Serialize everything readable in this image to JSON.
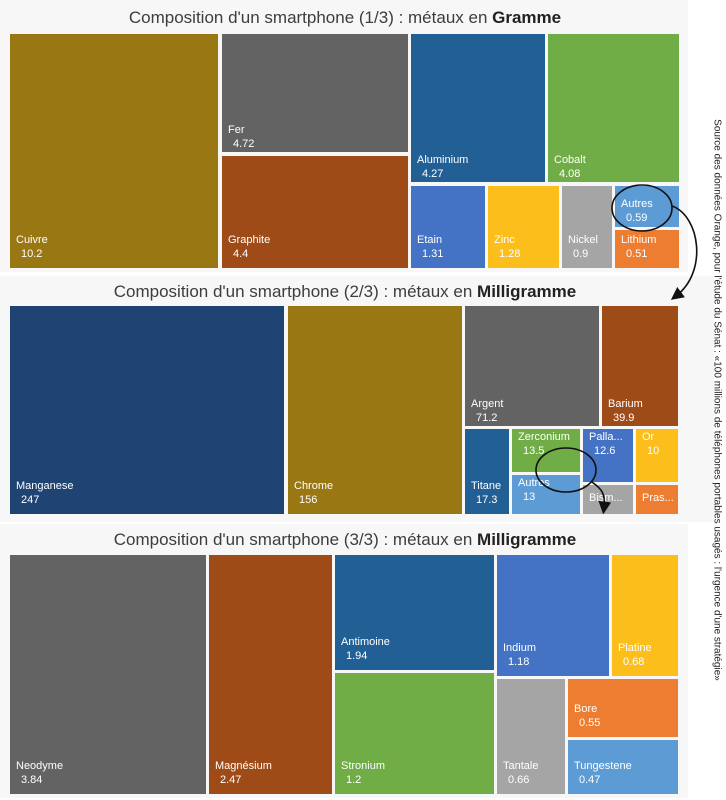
{
  "source_note": "Source des données Orange, pour l'étude du Sénat : «100 millions de téléphones portables usagés : l'urgence d'une stratégie»",
  "colors": {
    "olive": "#997713",
    "gray": "#636363",
    "rust": "#9f4b18",
    "navy": "#1f4372",
    "blue": "#225f94",
    "green": "#70ad47",
    "lblue": "#5d9bd5",
    "steel": "#4472c4",
    "yellow": "#fbbe1a",
    "lgray": "#a5a5a5",
    "orange": "#ed7d31"
  },
  "chart_data": [
    {
      "type": "treemap",
      "title_prefix": "Composition d'un smartphone (1/3) : métaux en ",
      "title_unit": "Gramme",
      "items": [
        {
          "name": "Cuivre",
          "value": "10.2",
          "color": "olive"
        },
        {
          "name": "Fer",
          "value": "4.72",
          "color": "gray"
        },
        {
          "name": "Graphite",
          "value": "4.4",
          "color": "rust"
        },
        {
          "name": "Aluminium",
          "value": "4.27",
          "color": "blue"
        },
        {
          "name": "Cobalt",
          "value": "4.08",
          "color": "green"
        },
        {
          "name": "Etain",
          "value": "1.31",
          "color": "steel"
        },
        {
          "name": "Zinc",
          "value": "1.28",
          "color": "yellow"
        },
        {
          "name": "Nickel",
          "value": "0.9",
          "color": "lgray"
        },
        {
          "name": "Autres",
          "value": "0.59",
          "color": "lblue"
        },
        {
          "name": "Lithium",
          "value": "0.51",
          "color": "orange"
        }
      ]
    },
    {
      "type": "treemap",
      "title_prefix": "Composition d'un smartphone (2/3) : métaux en ",
      "title_unit": "Milligramme",
      "items": [
        {
          "name": "Manganese",
          "value": "247",
          "color": "navy"
        },
        {
          "name": "Chrome",
          "value": "156",
          "color": "olive"
        },
        {
          "name": "Argent",
          "value": "71.2",
          "color": "gray"
        },
        {
          "name": "Barium",
          "value": "39.9",
          "color": "rust"
        },
        {
          "name": "Titane",
          "value": "17.3",
          "color": "blue"
        },
        {
          "name": "Zerconium",
          "value": "13.5",
          "color": "green"
        },
        {
          "name": "Autres",
          "value": "13",
          "color": "lblue"
        },
        {
          "name": "Palla...",
          "value": "12.6",
          "color": "steel"
        },
        {
          "name": "Or",
          "value": "10",
          "color": "yellow"
        },
        {
          "name": "Bism...",
          "value": "",
          "color": "lgray"
        },
        {
          "name": "Pras...",
          "value": "",
          "color": "orange"
        }
      ]
    },
    {
      "type": "treemap",
      "title_prefix": "Composition d'un smartphone (3/3) : métaux en ",
      "title_unit": "Milligramme",
      "items": [
        {
          "name": "Neodyme",
          "value": "3.84",
          "color": "gray"
        },
        {
          "name": "Magnésium",
          "value": "2.47",
          "color": "rust"
        },
        {
          "name": "Antimoine",
          "value": "1.94",
          "color": "blue"
        },
        {
          "name": "Stronium",
          "value": "1.2",
          "color": "green"
        },
        {
          "name": "Indium",
          "value": "1.18",
          "color": "steel"
        },
        {
          "name": "Platine",
          "value": "0.68",
          "color": "yellow"
        },
        {
          "name": "Tantale",
          "value": "0.66",
          "color": "lgray"
        },
        {
          "name": "Bore",
          "value": "0.55",
          "color": "orange"
        },
        {
          "name": "Tungestene",
          "value": "0.47",
          "color": "lblue"
        }
      ]
    }
  ]
}
